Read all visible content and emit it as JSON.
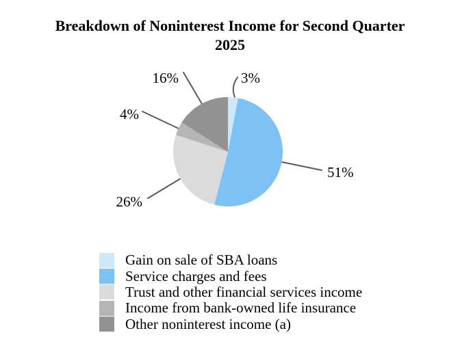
{
  "chart_data": {
    "type": "pie",
    "title": "Breakdown of Noninterest Income for Second Quarter 2025",
    "title_lines": [
      "Breakdown of Noninterest Income for Second Quarter",
      "2025"
    ],
    "labels": [
      "Gain on sale of SBA loans",
      "Service charges and fees",
      "Trust and other financial services income",
      "Income from bank-owned life insurance",
      "Other noninterest income (a)"
    ],
    "values": [
      3,
      51,
      26,
      4,
      16
    ],
    "pct_labels": [
      "3%",
      "51%",
      "26%",
      "4%",
      "16%"
    ],
    "colors": [
      "#CDE8FA",
      "#7EC1F5",
      "#DBDBDB",
      "#B5B5B5",
      "#929292"
    ],
    "start_angle_deg": 0,
    "direction": "clockwise",
    "legend_position": "bottom-left",
    "leader_line_color": "#595959",
    "title_color": "#000000",
    "label_color": "#000000"
  }
}
